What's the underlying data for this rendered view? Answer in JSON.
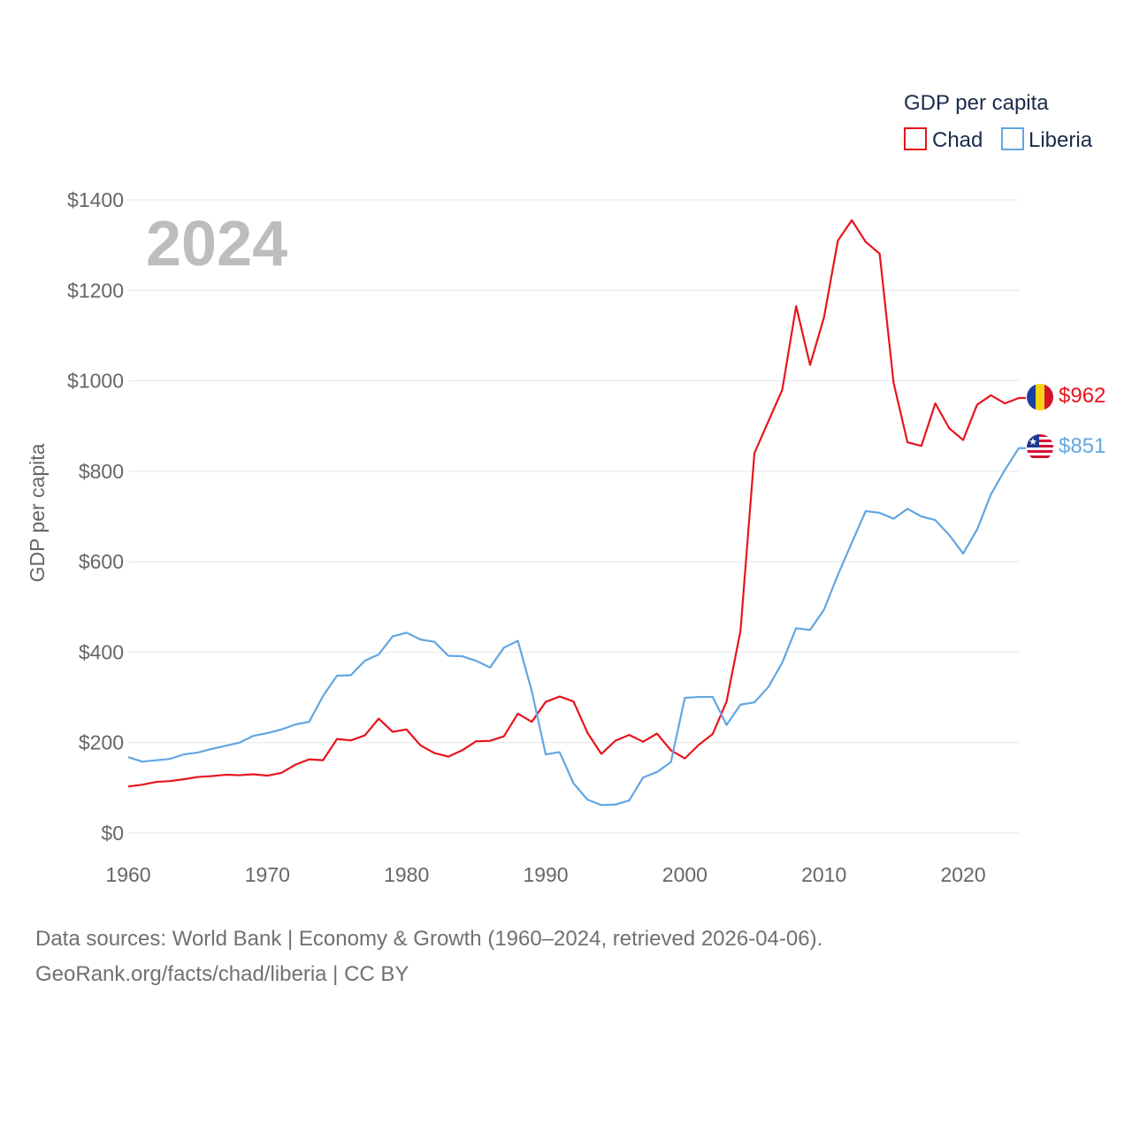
{
  "chart_data": {
    "type": "line",
    "year_label": "2024",
    "ylabel": "GDP per capita",
    "legend": {
      "title": "GDP per capita",
      "position": "top-right"
    },
    "ylim": [
      0,
      1400
    ],
    "yticks": [
      0,
      200,
      400,
      600,
      800,
      1000,
      1200,
      1400
    ],
    "ytick_labels": [
      "$0",
      "$200",
      "$400",
      "$600",
      "$800",
      "$1000",
      "$1200",
      "$1400"
    ],
    "xlim": [
      1960,
      2024
    ],
    "xticks": [
      1960,
      1970,
      1980,
      1990,
      2000,
      2010,
      2020
    ],
    "xtick_labels": [
      "1960",
      "1970",
      "1980",
      "1990",
      "2000",
      "2010",
      "2020"
    ],
    "x": [
      1960,
      1961,
      1962,
      1963,
      1964,
      1965,
      1966,
      1967,
      1968,
      1969,
      1970,
      1971,
      1972,
      1973,
      1974,
      1975,
      1976,
      1977,
      1978,
      1979,
      1980,
      1981,
      1982,
      1983,
      1984,
      1985,
      1986,
      1987,
      1988,
      1989,
      1990,
      1991,
      1992,
      1993,
      1994,
      1995,
      1996,
      1997,
      1998,
      1999,
      2000,
      2001,
      2002,
      2003,
      2004,
      2005,
      2006,
      2007,
      2008,
      2009,
      2010,
      2011,
      2012,
      2013,
      2014,
      2015,
      2016,
      2017,
      2018,
      2019,
      2020,
      2021,
      2022,
      2023,
      2024
    ],
    "series": [
      {
        "name": "Chad",
        "color": "#e8141c",
        "end_label": "$962",
        "flag": "chad-flag",
        "values": [
          103,
          107,
          113,
          115,
          119,
          124,
          126,
          129,
          128,
          130,
          127,
          133,
          151,
          163,
          161,
          208,
          205,
          216,
          253,
          224,
          229,
          194,
          177,
          169,
          183,
          203,
          204,
          214,
          264,
          246,
          290,
          302,
          291,
          222,
          175,
          204,
          217,
          202,
          220,
          183,
          165,
          195,
          219,
          291,
          447,
          840,
          910,
          980,
          1165,
          1035,
          1140,
          1310,
          1355,
          1307,
          1281,
          996,
          864,
          856,
          950,
          895,
          869,
          947,
          968,
          950,
          962
        ]
      },
      {
        "name": "Liberia",
        "color": "#62a6e2",
        "end_label": "$851",
        "flag": "liberia-flag",
        "values": [
          168,
          158,
          161,
          164,
          174,
          178,
          186,
          193,
          200,
          215,
          221,
          229,
          240,
          246,
          303,
          348,
          349,
          381,
          395,
          435,
          443,
          428,
          423,
          392,
          391,
          381,
          366,
          410,
          425,
          314,
          174,
          179,
          110,
          74,
          62,
          63,
          72,
          123,
          135,
          157,
          299,
          301,
          301,
          239,
          284,
          289,
          323,
          377,
          453,
          449,
          494,
          571,
          642,
          712,
          708,
          695,
          717,
          700,
          692,
          659,
          618,
          671,
          749,
          803,
          851
        ]
      }
    ]
  },
  "footer": {
    "line1": "Data sources: World Bank | Economy & Growth (1960–2024, retrieved 2026-04-06).",
    "line2": "GeoRank.org/facts/chad/liberia | CC BY"
  }
}
